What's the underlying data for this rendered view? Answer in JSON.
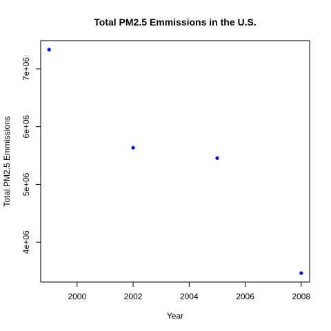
{
  "chart_data": {
    "type": "scatter",
    "title": "Total PM2.5 Emmissions in the U.S.",
    "xlabel": "Year",
    "ylabel": "Total PM2.5 Emmissions",
    "x": [
      1999,
      2002,
      2005,
      2008
    ],
    "y": [
      7332967,
      5635780,
      5454703,
      3464206
    ],
    "xlim": [
      1998.7,
      2008.3
    ],
    "ylim": [
      3309576,
      7488397
    ],
    "x_ticks": [
      2000,
      2002,
      2004,
      2006,
      2008
    ],
    "x_tick_labels": [
      "2000",
      "2002",
      "2004",
      "2006",
      "2008"
    ],
    "y_ticks": [
      4000000,
      5000000,
      6000000,
      7000000
    ],
    "y_tick_labels": [
      "4e+06",
      "5e+06",
      "6e+06",
      "7e+06"
    ],
    "point_color": "#0000ff",
    "grid": false,
    "legend": "none"
  }
}
